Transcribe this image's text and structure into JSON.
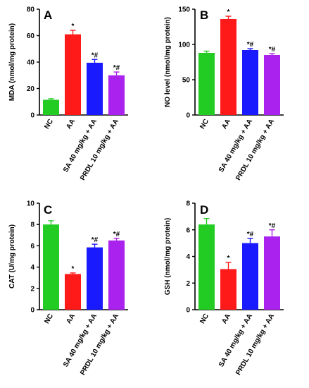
{
  "chart_data": [
    {
      "panel": "A",
      "type": "bar",
      "ylabel": "MDA (nmol/mg protein)",
      "ylim": [
        0,
        80
      ],
      "yticks": [
        0,
        20,
        40,
        60,
        80
      ],
      "categories": [
        "NC",
        "AA",
        "SA 40 mg/kg + AA",
        "PRDL 10 mg/kg + AA"
      ],
      "values": [
        11.5,
        61,
        39.5,
        30
      ],
      "errors": [
        0.8,
        3,
        2.5,
        2.5
      ],
      "significance": [
        "",
        "*",
        "*#",
        "*#"
      ],
      "colors": [
        "#22cc22",
        "#ff1a1a",
        "#1a1aff",
        "#aa22ee"
      ],
      "grid": false
    },
    {
      "panel": "B",
      "type": "bar",
      "ylabel": "NO level (nmol/mg protein)",
      "ylim": [
        0,
        150
      ],
      "yticks": [
        0,
        50,
        100,
        150
      ],
      "categories": [
        "NC",
        "AA",
        "SA 40 mg/kg + AA",
        "PRDL 10 mg/kg + AA"
      ],
      "values": [
        88,
        136,
        92,
        85
      ],
      "errors": [
        2.5,
        4,
        2,
        2
      ],
      "significance": [
        "",
        "*",
        "*#",
        "*#"
      ],
      "colors": [
        "#22cc22",
        "#ff1a1a",
        "#1a1aff",
        "#aa22ee"
      ],
      "grid": false
    },
    {
      "panel": "C",
      "type": "bar",
      "ylabel": "CAT (U/mg protein)",
      "ylim": [
        0,
        10
      ],
      "yticks": [
        0,
        2,
        4,
        6,
        8,
        10
      ],
      "categories": [
        "NC",
        "AA",
        "SA 40 mg/kg + AA",
        "PRDL 10 mg/kg + AA"
      ],
      "values": [
        8,
        3.35,
        5.85,
        6.5
      ],
      "errors": [
        0.35,
        0.1,
        0.3,
        0.2
      ],
      "significance": [
        "",
        "*",
        "*#",
        "*#"
      ],
      "colors": [
        "#22cc22",
        "#ff1a1a",
        "#1a1aff",
        "#aa22ee"
      ],
      "grid": false
    },
    {
      "panel": "D",
      "type": "bar",
      "ylabel": "GSH (nmol/mg protein)",
      "ylim": [
        0,
        8
      ],
      "yticks": [
        0,
        2,
        4,
        6,
        8
      ],
      "categories": [
        "NC",
        "AA",
        "SA 40 mg/kg + AA",
        "PRDL 10 mg/kg + AA"
      ],
      "values": [
        6.4,
        3.05,
        5.0,
        5.5
      ],
      "errors": [
        0.45,
        0.5,
        0.35,
        0.5
      ],
      "significance": [
        "",
        "*",
        "*#",
        "*#"
      ],
      "colors": [
        "#22cc22",
        "#ff1a1a",
        "#1a1aff",
        "#aa22ee"
      ],
      "grid": false
    }
  ]
}
